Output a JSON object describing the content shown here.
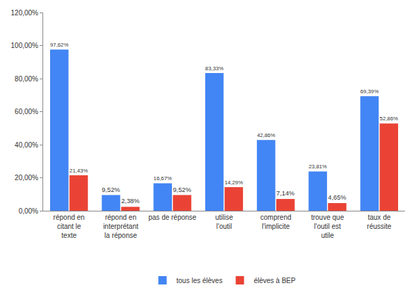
{
  "chart_data": {
    "type": "bar",
    "categories": [
      "répond en citant le texte",
      "répond en interprétant la réponse",
      "pas de réponse",
      "utilise l'outil",
      "comprend l'implicite",
      "trouve que l'outil est utile",
      "taux de réussite"
    ],
    "series": [
      {
        "name": "tous les élèves",
        "color": "#4285f4",
        "values": [
          97.62,
          9.52,
          16.67,
          83.33,
          42.86,
          23.81,
          69.39
        ],
        "value_labels": [
          "97,62%",
          "9,52%",
          "16,67%",
          "83,33%",
          "42,86%",
          "23,81%",
          "69,39%"
        ]
      },
      {
        "name": "élèves à BEP",
        "color": "#ea4335",
        "values": [
          21.43,
          2.38,
          9.52,
          14.29,
          7.14,
          4.65,
          52.86
        ],
        "value_labels": [
          "21,43%",
          "2,38%",
          "9,52%",
          "14,29%",
          "7,14%",
          "4,65%",
          "52,86%"
        ]
      }
    ],
    "ylim": [
      0,
      120
    ],
    "yticks": [
      {
        "value": 0,
        "label": "0,00%"
      },
      {
        "value": 20,
        "label": "20,00%"
      },
      {
        "value": 40,
        "label": "40,00%"
      },
      {
        "value": 60,
        "label": "60,00%"
      },
      {
        "value": 80,
        "label": "80,00%"
      },
      {
        "value": 100,
        "label": "100,00%"
      },
      {
        "value": 120,
        "label": "120,00%"
      }
    ],
    "grid": false,
    "legend": "bottom",
    "data_labels": true
  }
}
